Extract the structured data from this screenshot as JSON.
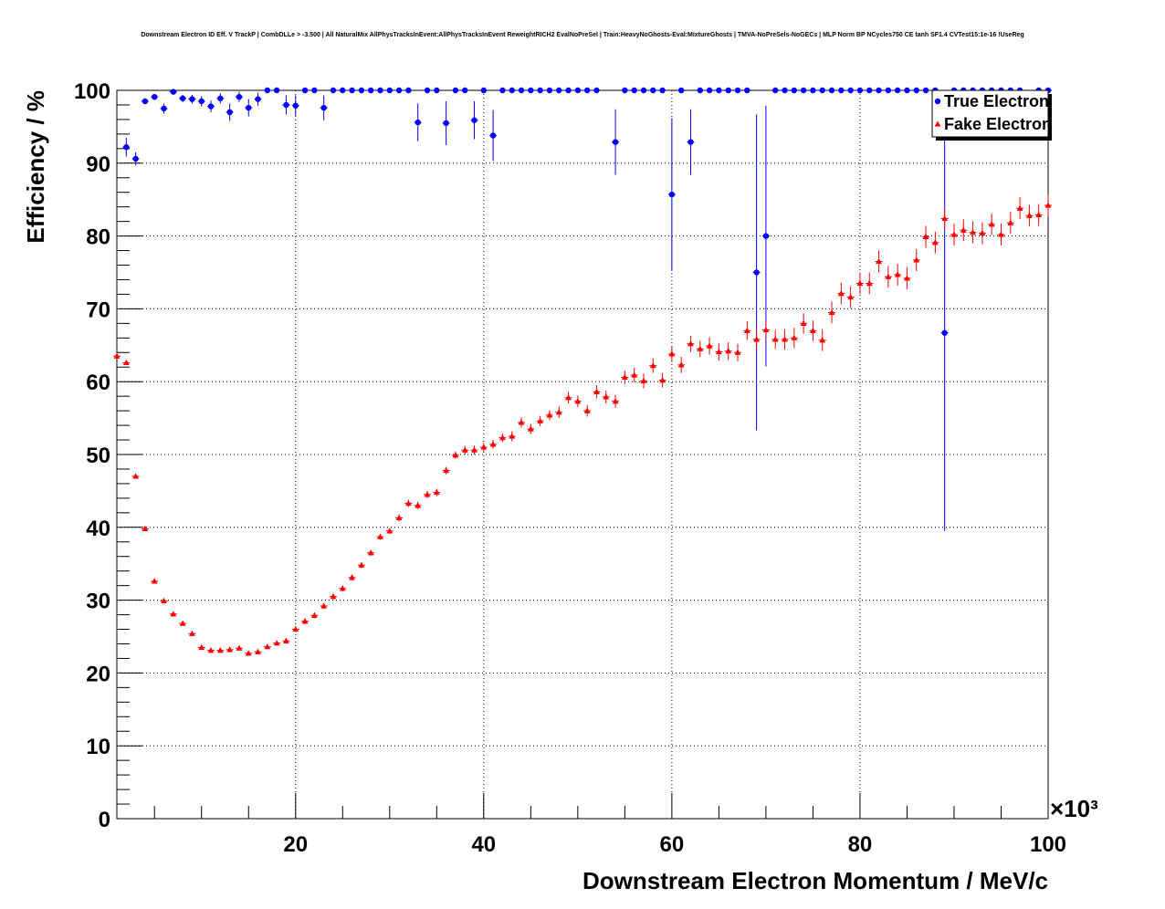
{
  "chart_data": {
    "type": "scatter",
    "title": "Downstream Electron ID Eff. V TrackP | CombDLLe > -3.500 | All NaturalMix AllPhysTracksInEvent:AllPhysTracksInEvent ReweightRICH2 EvalNoPreSel | Train:HeavyNoGhosts-Eval:MixtureGhosts | TMVA-NoPreSels-NoGECs | MLP Norm BP NCycles750 CE tanh SF1.4 CVTest15:1e-16 !UseReg",
    "xlabel": "Downstream Electron Momentum / MeV/c",
    "ylabel": "Efficiency / %",
    "x_exponent_label": "×10³",
    "xlim": [
      1,
      100
    ],
    "ylim": [
      0,
      100
    ],
    "x_ticks": [
      "20",
      "40",
      "60",
      "80",
      "100"
    ],
    "y_ticks": [
      "0",
      "10",
      "20",
      "30",
      "40",
      "50",
      "60",
      "70",
      "80",
      "90",
      "100"
    ],
    "grid": true,
    "legend_position": "top-right",
    "series": [
      {
        "name": "True Electron",
        "color": "#0000ff",
        "marker": "circle",
        "points": [
          [
            2,
            92.2,
            1.3
          ],
          [
            3,
            90.6,
            0.9
          ],
          [
            4,
            98.5,
            0.4
          ],
          [
            5,
            99.1,
            0.4
          ],
          [
            6,
            97.5,
            0.7
          ],
          [
            7,
            99.8,
            0.2
          ],
          [
            8,
            98.9,
            0.5
          ],
          [
            9,
            98.8,
            0.6
          ],
          [
            10,
            98.5,
            0.7
          ],
          [
            11,
            97.8,
            0.8
          ],
          [
            12,
            98.9,
            0.7
          ],
          [
            13,
            97.0,
            1.2
          ],
          [
            14,
            99.1,
            0.7
          ],
          [
            15,
            97.6,
            1.2
          ],
          [
            16,
            98.8,
            0.9
          ],
          [
            17,
            100,
            0
          ],
          [
            18,
            100,
            0
          ],
          [
            19,
            98.0,
            1.3
          ],
          [
            20,
            97.9,
            1.4
          ],
          [
            21,
            100,
            0
          ],
          [
            22,
            100,
            0
          ],
          [
            23,
            97.6,
            1.7
          ],
          [
            24,
            100,
            0
          ],
          [
            25,
            100,
            0
          ],
          [
            26,
            100,
            0
          ],
          [
            27,
            100,
            0
          ],
          [
            28,
            100,
            0
          ],
          [
            29,
            100,
            0
          ],
          [
            30,
            100,
            0
          ],
          [
            31,
            100,
            0
          ],
          [
            32,
            100,
            0
          ],
          [
            33,
            95.6,
            2.6
          ],
          [
            34,
            100,
            0
          ],
          [
            35,
            100,
            0
          ],
          [
            36,
            95.5,
            3.0
          ],
          [
            37,
            100,
            0
          ],
          [
            38,
            100,
            0
          ],
          [
            39,
            95.9,
            2.6
          ],
          [
            40,
            100,
            0
          ],
          [
            41,
            93.8,
            3.5
          ],
          [
            42,
            100,
            0
          ],
          [
            43,
            100,
            0
          ],
          [
            44,
            100,
            0
          ],
          [
            45,
            100,
            0
          ],
          [
            46,
            100,
            0
          ],
          [
            47,
            100,
            0
          ],
          [
            48,
            100,
            0
          ],
          [
            49,
            100,
            0
          ],
          [
            50,
            100,
            0
          ],
          [
            51,
            100,
            0
          ],
          [
            52,
            100,
            0
          ],
          [
            54,
            92.9,
            4.5
          ],
          [
            55,
            100,
            0
          ],
          [
            56,
            100,
            0
          ],
          [
            57,
            100,
            0
          ],
          [
            58,
            100,
            0
          ],
          [
            59,
            100,
            0
          ],
          [
            60,
            85.7,
            10.5
          ],
          [
            61,
            100,
            0
          ],
          [
            62,
            92.9,
            4.5
          ],
          [
            63,
            100,
            0
          ],
          [
            64,
            100,
            0
          ],
          [
            65,
            100,
            0
          ],
          [
            66,
            100,
            0
          ],
          [
            67,
            100,
            0
          ],
          [
            68,
            100,
            0
          ],
          [
            69,
            75.0,
            21.7
          ],
          [
            70,
            80.0,
            17.9
          ],
          [
            71,
            100,
            0
          ],
          [
            72,
            100,
            0
          ],
          [
            73,
            100,
            0
          ],
          [
            74,
            100,
            0
          ],
          [
            75,
            100,
            0
          ],
          [
            76,
            100,
            0
          ],
          [
            77,
            100,
            0
          ],
          [
            78,
            100,
            0
          ],
          [
            79,
            100,
            0
          ],
          [
            80,
            100,
            0
          ],
          [
            81,
            100,
            0
          ],
          [
            82,
            100,
            0
          ],
          [
            83,
            100,
            0
          ],
          [
            84,
            100,
            0
          ],
          [
            85,
            100,
            0
          ],
          [
            86,
            100,
            0
          ],
          [
            87,
            100,
            0
          ],
          [
            88,
            100,
            0
          ],
          [
            89,
            66.7,
            27.2
          ],
          [
            90,
            100,
            0
          ],
          [
            91,
            100,
            0
          ],
          [
            92,
            100,
            0
          ],
          [
            93,
            100,
            0
          ],
          [
            94,
            100,
            0
          ],
          [
            95,
            100,
            0
          ],
          [
            96,
            100,
            0
          ],
          [
            97,
            100,
            0
          ],
          [
            99,
            100,
            0
          ],
          [
            100,
            100,
            0
          ]
        ]
      },
      {
        "name": "Fake Electron",
        "color": "#ff0000",
        "marker": "triangle",
        "points": [
          [
            1,
            63.5,
            0.3
          ],
          [
            2,
            62.6,
            0.3
          ],
          [
            3,
            47.0,
            0.3
          ],
          [
            4,
            39.8,
            0.3
          ],
          [
            5,
            32.6,
            0.3
          ],
          [
            6,
            29.9,
            0.3
          ],
          [
            7,
            28.1,
            0.3
          ],
          [
            8,
            26.8,
            0.3
          ],
          [
            9,
            25.4,
            0.3
          ],
          [
            10,
            23.5,
            0.3
          ],
          [
            11,
            23.1,
            0.3
          ],
          [
            12,
            23.1,
            0.3
          ],
          [
            13,
            23.2,
            0.3
          ],
          [
            14,
            23.4,
            0.3
          ],
          [
            15,
            22.7,
            0.3
          ],
          [
            16,
            22.9,
            0.3
          ],
          [
            17,
            23.6,
            0.3
          ],
          [
            18,
            24.1,
            0.3
          ],
          [
            19,
            24.4,
            0.4
          ],
          [
            20,
            26.0,
            0.4
          ],
          [
            21,
            27.1,
            0.4
          ],
          [
            22,
            27.9,
            0.4
          ],
          [
            23,
            29.2,
            0.4
          ],
          [
            24,
            30.5,
            0.4
          ],
          [
            25,
            31.6,
            0.4
          ],
          [
            26,
            33.1,
            0.4
          ],
          [
            27,
            34.8,
            0.4
          ],
          [
            28,
            36.5,
            0.4
          ],
          [
            29,
            38.7,
            0.4
          ],
          [
            30,
            39.5,
            0.4
          ],
          [
            31,
            41.3,
            0.5
          ],
          [
            32,
            43.3,
            0.5
          ],
          [
            33,
            43.0,
            0.5
          ],
          [
            34,
            44.5,
            0.5
          ],
          [
            35,
            44.8,
            0.5
          ],
          [
            36,
            47.8,
            0.5
          ],
          [
            37,
            49.9,
            0.5
          ],
          [
            38,
            50.6,
            0.6
          ],
          [
            39,
            50.6,
            0.6
          ],
          [
            40,
            51.0,
            0.6
          ],
          [
            41,
            51.4,
            0.6
          ],
          [
            42,
            52.3,
            0.6
          ],
          [
            43,
            52.5,
            0.7
          ],
          [
            44,
            54.4,
            0.7
          ],
          [
            45,
            53.5,
            0.7
          ],
          [
            46,
            54.6,
            0.7
          ],
          [
            47,
            55.4,
            0.7
          ],
          [
            48,
            55.8,
            0.8
          ],
          [
            49,
            57.8,
            0.8
          ],
          [
            50,
            57.3,
            0.8
          ],
          [
            51,
            56.0,
            0.8
          ],
          [
            52,
            58.6,
            0.9
          ],
          [
            53,
            57.9,
            0.9
          ],
          [
            54,
            57.3,
            0.9
          ],
          [
            55,
            60.6,
            0.9
          ],
          [
            56,
            60.9,
            1.0
          ],
          [
            57,
            60.1,
            1.0
          ],
          [
            58,
            62.2,
            1.0
          ],
          [
            59,
            60.2,
            1.0
          ],
          [
            60,
            63.8,
            1.1
          ],
          [
            61,
            62.3,
            1.1
          ],
          [
            62,
            65.2,
            1.1
          ],
          [
            63,
            64.5,
            1.1
          ],
          [
            64,
            64.9,
            1.2
          ],
          [
            65,
            64.1,
            1.2
          ],
          [
            66,
            64.2,
            1.2
          ],
          [
            67,
            64.0,
            1.2
          ],
          [
            68,
            67.0,
            1.3
          ],
          [
            69,
            65.8,
            1.3
          ],
          [
            70,
            67.1,
            1.3
          ],
          [
            71,
            65.8,
            1.3
          ],
          [
            72,
            65.8,
            1.4
          ],
          [
            73,
            66.0,
            1.4
          ],
          [
            74,
            68.0,
            1.4
          ],
          [
            75,
            67.0,
            1.4
          ],
          [
            76,
            65.7,
            1.5
          ],
          [
            77,
            69.5,
            1.5
          ],
          [
            78,
            72.1,
            1.5
          ],
          [
            79,
            71.6,
            1.5
          ],
          [
            80,
            73.5,
            1.5
          ],
          [
            81,
            73.5,
            1.5
          ],
          [
            82,
            76.5,
            1.5
          ],
          [
            83,
            74.4,
            1.5
          ],
          [
            84,
            74.7,
            1.5
          ],
          [
            85,
            74.2,
            1.5
          ],
          [
            86,
            76.7,
            1.5
          ],
          [
            87,
            79.9,
            1.5
          ],
          [
            88,
            79.1,
            1.5
          ],
          [
            89,
            82.4,
            1.5
          ],
          [
            90,
            80.2,
            1.5
          ],
          [
            91,
            80.8,
            1.5
          ],
          [
            92,
            80.5,
            1.5
          ],
          [
            93,
            80.4,
            1.5
          ],
          [
            94,
            81.6,
            1.5
          ],
          [
            95,
            80.2,
            1.5
          ],
          [
            96,
            81.8,
            1.5
          ],
          [
            97,
            83.8,
            1.5
          ],
          [
            98,
            82.8,
            1.5
          ],
          [
            99,
            82.9,
            1.5
          ],
          [
            100,
            84.2,
            1.5
          ]
        ]
      }
    ]
  }
}
